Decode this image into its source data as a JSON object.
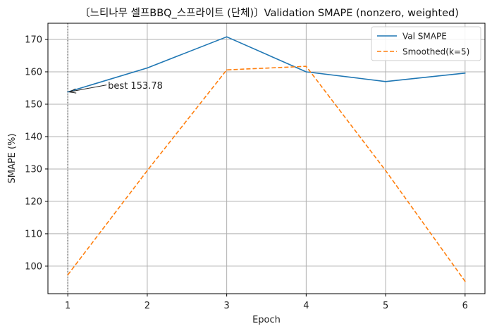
{
  "chart_data": {
    "type": "line",
    "title": "〔느티나무 셀프BBQ_스프라이트 (단체)〕Validation SMAPE (nonzero, weighted)",
    "xlabel": "Epoch",
    "ylabel": "SMAPE (%)",
    "x": [
      1,
      2,
      3,
      4,
      5,
      6
    ],
    "xlim": [
      0.75,
      6.25
    ],
    "ylim": [
      91.5,
      175
    ],
    "xticks": [
      1,
      2,
      3,
      4,
      5,
      6
    ],
    "yticks": [
      100,
      110,
      120,
      130,
      140,
      150,
      160,
      170
    ],
    "grid": true,
    "legend_position": "top-right",
    "series": [
      {
        "name": "Val SMAPE",
        "style": "solid",
        "color": "#1f77b4",
        "values": [
          153.78,
          161.2,
          170.8,
          160.0,
          157.0,
          159.6
        ]
      },
      {
        "name": "Smoothed(k=5)",
        "style": "dashed",
        "color": "#ff7f0e",
        "values": [
          97.3,
          129.5,
          160.6,
          161.7,
          129.5,
          95.3
        ]
      }
    ],
    "best_marker": {
      "x": 1,
      "style": "dotted",
      "color": "#808080"
    },
    "annotation": {
      "text": "best 153.78",
      "x": 1,
      "y": 153.78
    }
  }
}
